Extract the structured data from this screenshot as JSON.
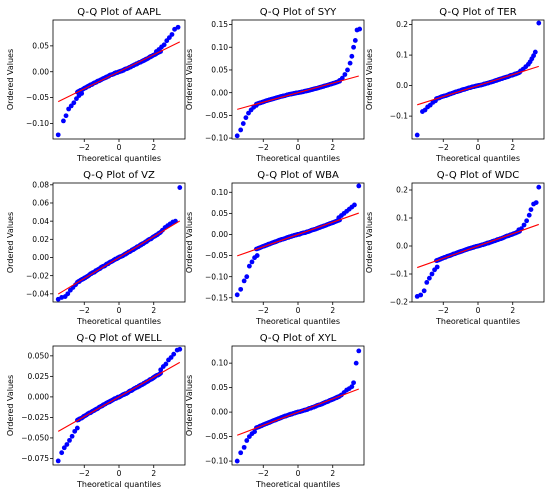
{
  "figure": {
    "colors": {
      "points": "#0000ff",
      "line": "#ff0000",
      "axes": "#000000",
      "background": "#ffffff"
    }
  },
  "chart_data": [
    {
      "type": "scatter",
      "title": "Q-Q Plot of AAPL",
      "xlabel": "Theoretical quantiles",
      "ylabel": "Ordered Values",
      "xlim": [
        -3.8,
        3.8
      ],
      "ylim": [
        -0.13,
        0.1
      ],
      "xticks": [
        -2,
        0,
        2
      ],
      "xtick_labels": [
        "−2",
        "0",
        "2"
      ],
      "yticks": [
        -0.1,
        -0.05,
        0.0,
        0.05
      ],
      "ytick_labels": [
        "−0.10",
        "−0.05",
        "0.00",
        "0.05"
      ],
      "fit_line": {
        "slope": 0.0165,
        "intercept": 0.0
      },
      "points": [
        [
          -3.5,
          -0.122
        ],
        [
          -3.2,
          -0.095
        ],
        [
          -3.05,
          -0.085
        ],
        [
          -2.9,
          -0.072
        ],
        [
          -2.75,
          -0.066
        ],
        [
          -2.6,
          -0.06
        ],
        [
          -2.45,
          -0.052
        ],
        [
          -2.3,
          -0.046
        ],
        [
          -2.15,
          -0.042
        ],
        [
          2.15,
          0.039
        ],
        [
          2.3,
          0.043
        ],
        [
          2.45,
          0.048
        ],
        [
          2.6,
          0.052
        ],
        [
          2.75,
          0.06
        ],
        [
          2.9,
          0.066
        ],
        [
          3.05,
          0.072
        ],
        [
          3.2,
          0.082
        ],
        [
          3.4,
          0.086
        ]
      ],
      "tail_power": 1.3
    },
    {
      "type": "scatter",
      "title": "Q-Q Plot of SYY",
      "xlabel": "Theoretical quantiles",
      "ylabel": "Ordered Values",
      "xlim": [
        -3.8,
        3.8
      ],
      "ylim": [
        -0.102,
        0.16
      ],
      "xticks": [
        -2,
        0,
        2
      ],
      "xtick_labels": [
        "−2",
        "0",
        "2"
      ],
      "yticks": [
        -0.1,
        -0.05,
        0.0,
        0.05,
        0.1,
        0.15
      ],
      "ytick_labels": [
        "−0.10",
        "−0.05",
        "0.00",
        "0.05",
        "0.10",
        "0.15"
      ],
      "fit_line": {
        "slope": 0.0105,
        "intercept": 0.0
      },
      "points": [
        [
          -3.5,
          -0.095
        ],
        [
          -3.3,
          -0.082
        ],
        [
          -3.15,
          -0.068
        ],
        [
          -3.0,
          -0.055
        ],
        [
          -2.85,
          -0.045
        ],
        [
          -2.7,
          -0.038
        ],
        [
          -2.55,
          -0.032
        ],
        [
          -2.4,
          -0.028
        ],
        [
          2.4,
          0.027
        ],
        [
          2.55,
          0.032
        ],
        [
          2.7,
          0.04
        ],
        [
          2.85,
          0.05
        ],
        [
          3.0,
          0.065
        ],
        [
          3.1,
          0.08
        ],
        [
          3.2,
          0.1
        ],
        [
          3.3,
          0.115
        ],
        [
          3.4,
          0.138
        ],
        [
          3.55,
          0.14
        ]
      ],
      "tail_power": 1.5
    },
    {
      "type": "scatter",
      "title": "Q-Q Plot of TER",
      "xlabel": "Theoretical quantiles",
      "ylabel": "Ordered Values",
      "xlim": [
        -3.8,
        3.8
      ],
      "ylim": [
        -0.175,
        0.215
      ],
      "xticks": [
        -2,
        0,
        2
      ],
      "xtick_labels": [
        "−2",
        "0",
        "2"
      ],
      "yticks": [
        -0.1,
        0.0,
        0.1,
        0.2
      ],
      "ytick_labels": [
        "−0.1",
        "0.0",
        "0.1",
        "0.2"
      ],
      "fit_line": {
        "slope": 0.018,
        "intercept": 0.0
      },
      "points": [
        [
          -3.5,
          -0.162
        ],
        [
          -3.2,
          -0.085
        ],
        [
          -3.05,
          -0.08
        ],
        [
          -2.9,
          -0.07
        ],
        [
          -2.75,
          -0.064
        ],
        [
          -2.6,
          -0.055
        ],
        [
          -2.45,
          -0.05
        ],
        [
          2.45,
          0.048
        ],
        [
          2.6,
          0.054
        ],
        [
          2.75,
          0.062
        ],
        [
          2.9,
          0.07
        ],
        [
          3.0,
          0.078
        ],
        [
          3.1,
          0.088
        ],
        [
          3.2,
          0.098
        ],
        [
          3.3,
          0.11
        ],
        [
          3.5,
          0.205
        ]
      ],
      "tail_power": 1.3
    },
    {
      "type": "scatter",
      "title": "Q-Q Plot of VZ",
      "xlabel": "Theoretical quantiles",
      "ylabel": "Ordered Values",
      "xlim": [
        -3.8,
        3.8
      ],
      "ylim": [
        -0.049,
        0.082
      ],
      "xticks": [
        -2,
        0,
        2
      ],
      "xtick_labels": [
        "−2",
        "0",
        "2"
      ],
      "yticks": [
        -0.04,
        -0.02,
        0.0,
        0.02,
        0.04,
        0.06,
        0.08
      ],
      "ytick_labels": [
        "−0.04",
        "−0.02",
        "0.00",
        "0.02",
        "0.04",
        "0.06",
        "0.08"
      ],
      "fit_line": {
        "slope": 0.0115,
        "intercept": 0.0
      },
      "points": [
        [
          -3.5,
          -0.046
        ],
        [
          -3.3,
          -0.044
        ],
        [
          -3.1,
          -0.043
        ],
        [
          -2.95,
          -0.04
        ],
        [
          -2.8,
          -0.036
        ],
        [
          -2.65,
          -0.033
        ],
        [
          -2.5,
          -0.03
        ],
        [
          2.5,
          0.03
        ],
        [
          2.65,
          0.033
        ],
        [
          2.8,
          0.035
        ],
        [
          2.95,
          0.037
        ],
        [
          3.1,
          0.039
        ],
        [
          3.25,
          0.04
        ],
        [
          3.5,
          0.077
        ]
      ],
      "tail_power": 1.15
    },
    {
      "type": "scatter",
      "title": "Q-Q Plot of WBA",
      "xlabel": "Theoretical quantiles",
      "ylabel": "Ordered Values",
      "xlim": [
        -3.8,
        3.8
      ],
      "ylim": [
        -0.16,
        0.122
      ],
      "xticks": [
        -2,
        0,
        2
      ],
      "xtick_labels": [
        "−2",
        "0",
        "2"
      ],
      "yticks": [
        -0.15,
        -0.1,
        -0.05,
        0.0,
        0.05,
        0.1
      ],
      "ytick_labels": [
        "−0.15",
        "−0.10",
        "−0.05",
        "0.00",
        "0.05",
        "0.10"
      ],
      "fit_line": {
        "slope": 0.0145,
        "intercept": 0.0
      },
      "points": [
        [
          -3.5,
          -0.143
        ],
        [
          -3.3,
          -0.13
        ],
        [
          -3.1,
          -0.11
        ],
        [
          -2.95,
          -0.1
        ],
        [
          -2.8,
          -0.075
        ],
        [
          -2.65,
          -0.065
        ],
        [
          -2.5,
          -0.055
        ],
        [
          -2.35,
          -0.05
        ],
        [
          2.35,
          0.04
        ],
        [
          2.5,
          0.045
        ],
        [
          2.65,
          0.05
        ],
        [
          2.8,
          0.055
        ],
        [
          2.95,
          0.06
        ],
        [
          3.1,
          0.065
        ],
        [
          3.25,
          0.07
        ],
        [
          3.5,
          0.115
        ]
      ],
      "tail_power": 1.35
    },
    {
      "type": "scatter",
      "title": "Q-Q Plot of WDC",
      "xlabel": "Theoretical quantiles",
      "ylabel": "Ordered Values",
      "xlim": [
        -3.8,
        3.8
      ],
      "ylim": [
        -0.2,
        0.225
      ],
      "xticks": [
        -2,
        0,
        2
      ],
      "xtick_labels": [
        "−2",
        "0",
        "2"
      ],
      "yticks": [
        -0.2,
        -0.1,
        0.0,
        0.1,
        0.2
      ],
      "ytick_labels": [
        "−0.2",
        "−0.1",
        "0.0",
        "0.1",
        "0.2"
      ],
      "fit_line": {
        "slope": 0.022,
        "intercept": 0.0
      },
      "points": [
        [
          -3.5,
          -0.18
        ],
        [
          -3.3,
          -0.175
        ],
        [
          -3.1,
          -0.16
        ],
        [
          -2.95,
          -0.13
        ],
        [
          -2.8,
          -0.115
        ],
        [
          -2.65,
          -0.1
        ],
        [
          -2.5,
          -0.085
        ],
        [
          -2.35,
          -0.075
        ],
        [
          2.35,
          0.058
        ],
        [
          2.5,
          0.062
        ],
        [
          2.65,
          0.075
        ],
        [
          2.8,
          0.09
        ],
        [
          2.95,
          0.11
        ],
        [
          3.05,
          0.13
        ],
        [
          3.2,
          0.15
        ],
        [
          3.35,
          0.155
        ],
        [
          3.5,
          0.21
        ]
      ],
      "tail_power": 1.3
    },
    {
      "type": "scatter",
      "title": "Q-Q Plot of WELL",
      "xlabel": "Theoretical quantiles",
      "ylabel": "Ordered Values",
      "xlim": [
        -3.8,
        3.8
      ],
      "ylim": [
        -0.083,
        0.062
      ],
      "xticks": [
        -2,
        0,
        2
      ],
      "xtick_labels": [
        "−2",
        "0",
        "2"
      ],
      "yticks": [
        -0.075,
        -0.05,
        -0.025,
        0.0,
        0.025,
        0.05
      ],
      "ytick_labels": [
        "−0.075",
        "−0.050",
        "−0.025",
        "0.000",
        "0.025",
        "0.050"
      ],
      "fit_line": {
        "slope": 0.012,
        "intercept": 0.0
      },
      "points": [
        [
          -3.5,
          -0.078
        ],
        [
          -3.3,
          -0.068
        ],
        [
          -3.15,
          -0.062
        ],
        [
          -3.0,
          -0.058
        ],
        [
          -2.85,
          -0.053
        ],
        [
          -2.7,
          -0.048
        ],
        [
          -2.55,
          -0.042
        ],
        [
          -2.4,
          -0.038
        ],
        [
          2.4,
          0.033
        ],
        [
          2.55,
          0.037
        ],
        [
          2.7,
          0.04
        ],
        [
          2.85,
          0.045
        ],
        [
          3.0,
          0.048
        ],
        [
          3.15,
          0.052
        ],
        [
          3.35,
          0.057
        ],
        [
          3.5,
          0.058
        ]
      ],
      "tail_power": 1.2
    },
    {
      "type": "scatter",
      "title": "Q-Q Plot of XYL",
      "xlabel": "Theoretical quantiles",
      "ylabel": "Ordered Values",
      "xlim": [
        -3.8,
        3.8
      ],
      "ylim": [
        -0.108,
        0.135
      ],
      "xticks": [
        -2,
        0,
        2
      ],
      "xtick_labels": [
        "−2",
        "0",
        "2"
      ],
      "yticks": [
        -0.1,
        -0.05,
        0.0,
        0.05,
        0.1
      ],
      "ytick_labels": [
        "−0.10",
        "−0.05",
        "0.00",
        "0.05",
        "0.10"
      ],
      "fit_line": {
        "slope": 0.0135,
        "intercept": 0.0
      },
      "points": [
        [
          -3.5,
          -0.1
        ],
        [
          -3.3,
          -0.083
        ],
        [
          -3.1,
          -0.072
        ],
        [
          -2.95,
          -0.058
        ],
        [
          -2.8,
          -0.05
        ],
        [
          -2.65,
          -0.044
        ],
        [
          -2.5,
          -0.04
        ],
        [
          2.5,
          0.035
        ],
        [
          2.65,
          0.04
        ],
        [
          2.8,
          0.045
        ],
        [
          2.95,
          0.048
        ],
        [
          3.1,
          0.052
        ],
        [
          3.2,
          0.06
        ],
        [
          3.35,
          0.1
        ],
        [
          3.5,
          0.125
        ]
      ],
      "tail_power": 1.4
    }
  ]
}
